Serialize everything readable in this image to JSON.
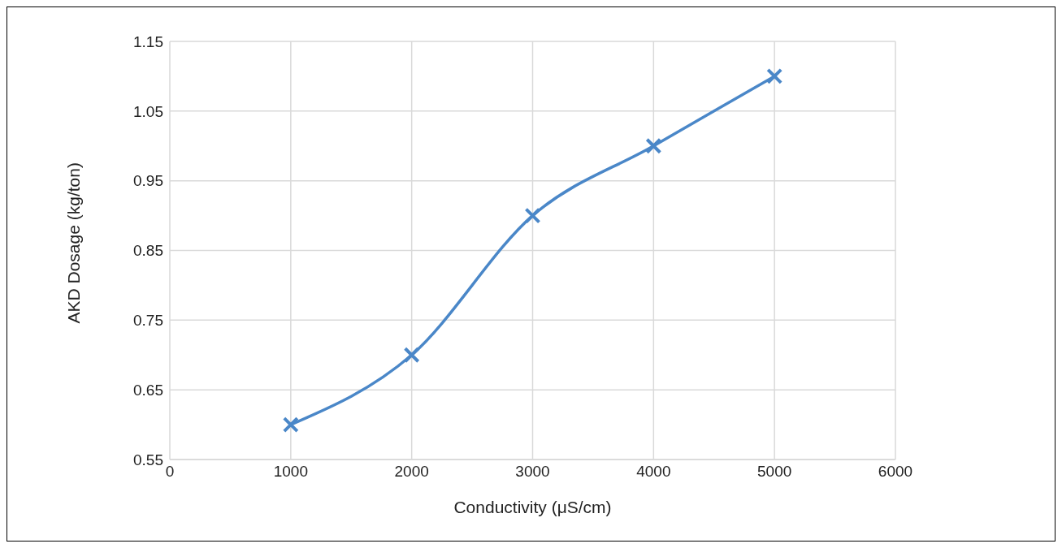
{
  "chart_data": {
    "type": "line",
    "xlabel": "Conductivity (μS/cm)",
    "ylabel": "AKD Dosage (kg/ton)",
    "x": [
      1000,
      2000,
      3000,
      4000,
      5000
    ],
    "series": [
      {
        "color": "#4a87c8",
        "values": [
          0.6,
          0.7,
          0.9,
          1.0,
          1.1
        ]
      }
    ],
    "xlim": [
      0,
      6000
    ],
    "xticks": [
      0,
      1000,
      2000,
      3000,
      4000,
      5000,
      6000
    ],
    "ylim": [
      0.55,
      1.15
    ],
    "yticks": [
      0.55,
      0.65,
      0.75,
      0.85,
      0.95,
      1.05,
      1.15
    ],
    "grid": true,
    "marker": "cross",
    "legend": false
  }
}
